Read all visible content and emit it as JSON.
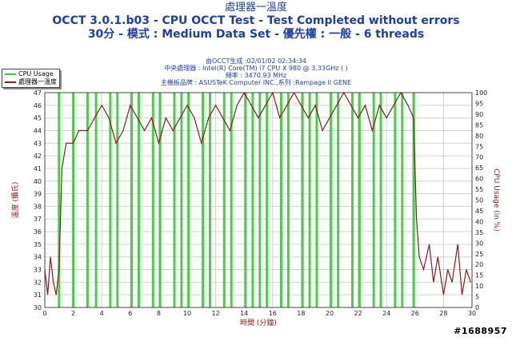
{
  "title": {
    "line1": "處理器一溫度",
    "line2": "OCCT 3.0.1.b03 - CPU OCCT Test - Test Completed without errors",
    "line3": "30分 - 模式 : Medium Data Set - 優先權 : 一般 - 6 threads"
  },
  "info": {
    "generated": "由OCCT生成 :02/01/02 02:34:34",
    "cpu": "中央處理器 : Intel(R) Core(TM) i7 CPU X 980 @ 3.33GHz (   )",
    "clock": "頻率 : 3470.93 MHz",
    "board": "主機板品牌 : ASUSTeK Computer INC.,系列 :Rampage II GENE"
  },
  "legend": {
    "cpu_usage": "CPU Usage",
    "temperature": "處理器一溫度"
  },
  "watermark": "#1688957",
  "colors": {
    "title": "#1f3fa8",
    "temperature": "#8b1a1a",
    "cpu_usage": "#33cc33",
    "grid": "#d0d0d0"
  },
  "chart_data": {
    "type": "line",
    "xlabel": "時間 (分鐘)",
    "ylabel_left": "溫度 (攝氏)",
    "ylabel_right": "CPU Usage (in %)",
    "xlim": [
      0,
      30
    ],
    "ylim_left": [
      30,
      47
    ],
    "ylim_right": [
      0,
      100
    ],
    "x_ticks": [
      "0",
      "2",
      "4",
      "6",
      "8",
      "10",
      "12",
      "14",
      "16",
      "18",
      "20",
      "22",
      "24",
      "26",
      "28",
      "30"
    ],
    "y_left_ticks": [
      "30",
      "31",
      "32",
      "33",
      "34",
      "35",
      "36",
      "37",
      "38",
      "39",
      "40",
      "41",
      "42",
      "43",
      "44",
      "45",
      "46",
      "47"
    ],
    "y_right_ticks": [
      "0",
      "5",
      "10",
      "15",
      "20",
      "25",
      "30",
      "35",
      "40",
      "45",
      "50",
      "55",
      "60",
      "65",
      "70",
      "75",
      "80",
      "85",
      "90",
      "95",
      "100"
    ],
    "grid": true,
    "series": [
      {
        "name": "處理器一溫度",
        "axis": "left",
        "x": [
          0,
          0.2,
          0.4,
          0.6,
          0.8,
          1.0,
          1.2,
          1.5,
          2.0,
          2.4,
          3.0,
          3.5,
          4.0,
          4.5,
          5.0,
          5.5,
          6.0,
          6.5,
          7.0,
          7.5,
          8.0,
          8.5,
          9.0,
          9.5,
          10.0,
          10.5,
          11.0,
          11.5,
          12.0,
          12.5,
          13.0,
          13.5,
          14.0,
          14.5,
          15.0,
          15.5,
          16.0,
          16.5,
          17.0,
          17.5,
          18.0,
          18.5,
          19.0,
          19.5,
          20.0,
          20.5,
          21.0,
          21.5,
          22.0,
          22.5,
          23.0,
          23.5,
          24.0,
          24.5,
          25.0,
          25.5,
          25.9,
          26.1,
          26.3,
          26.6,
          27.0,
          27.3,
          27.6,
          28.0,
          28.3,
          28.6,
          29.0,
          29.3,
          29.6,
          29.9
        ],
        "values": [
          33,
          31,
          34,
          32,
          31,
          33,
          41,
          43,
          43,
          44,
          44,
          45,
          46,
          45,
          43,
          44,
          46,
          45,
          44,
          45,
          43,
          45,
          44,
          45,
          46,
          45,
          43,
          45,
          46,
          45,
          44,
          46,
          47,
          46,
          45,
          46,
          47,
          45,
          46,
          47,
          46,
          45,
          46,
          44,
          45,
          46,
          47,
          46,
          45,
          46,
          44,
          46,
          45,
          46,
          47,
          46,
          45,
          37,
          34,
          33,
          35,
          32,
          34,
          31,
          33,
          32,
          35,
          31,
          33,
          32
        ]
      },
      {
        "name": "CPU Usage",
        "axis": "right",
        "x": [
          1.0,
          2.0,
          3.0,
          3.6,
          4.6,
          5.1,
          6.1,
          6.6,
          7.6,
          8.1,
          9.1,
          9.6,
          10.1,
          11.1,
          11.6,
          12.6,
          13.1,
          14.1,
          14.6,
          15.1,
          15.6,
          16.6,
          17.1,
          18.1,
          18.6,
          19.1,
          20.1,
          20.6,
          21.6,
          22.1,
          23.1,
          23.6,
          24.6,
          25.1,
          25.9
        ],
        "values": [
          100,
          100,
          100,
          100,
          100,
          100,
          100,
          100,
          100,
          100,
          100,
          100,
          100,
          100,
          100,
          100,
          100,
          100,
          100,
          100,
          100,
          100,
          100,
          100,
          100,
          100,
          100,
          100,
          100,
          100,
          100,
          100,
          100,
          100,
          100
        ]
      }
    ]
  }
}
